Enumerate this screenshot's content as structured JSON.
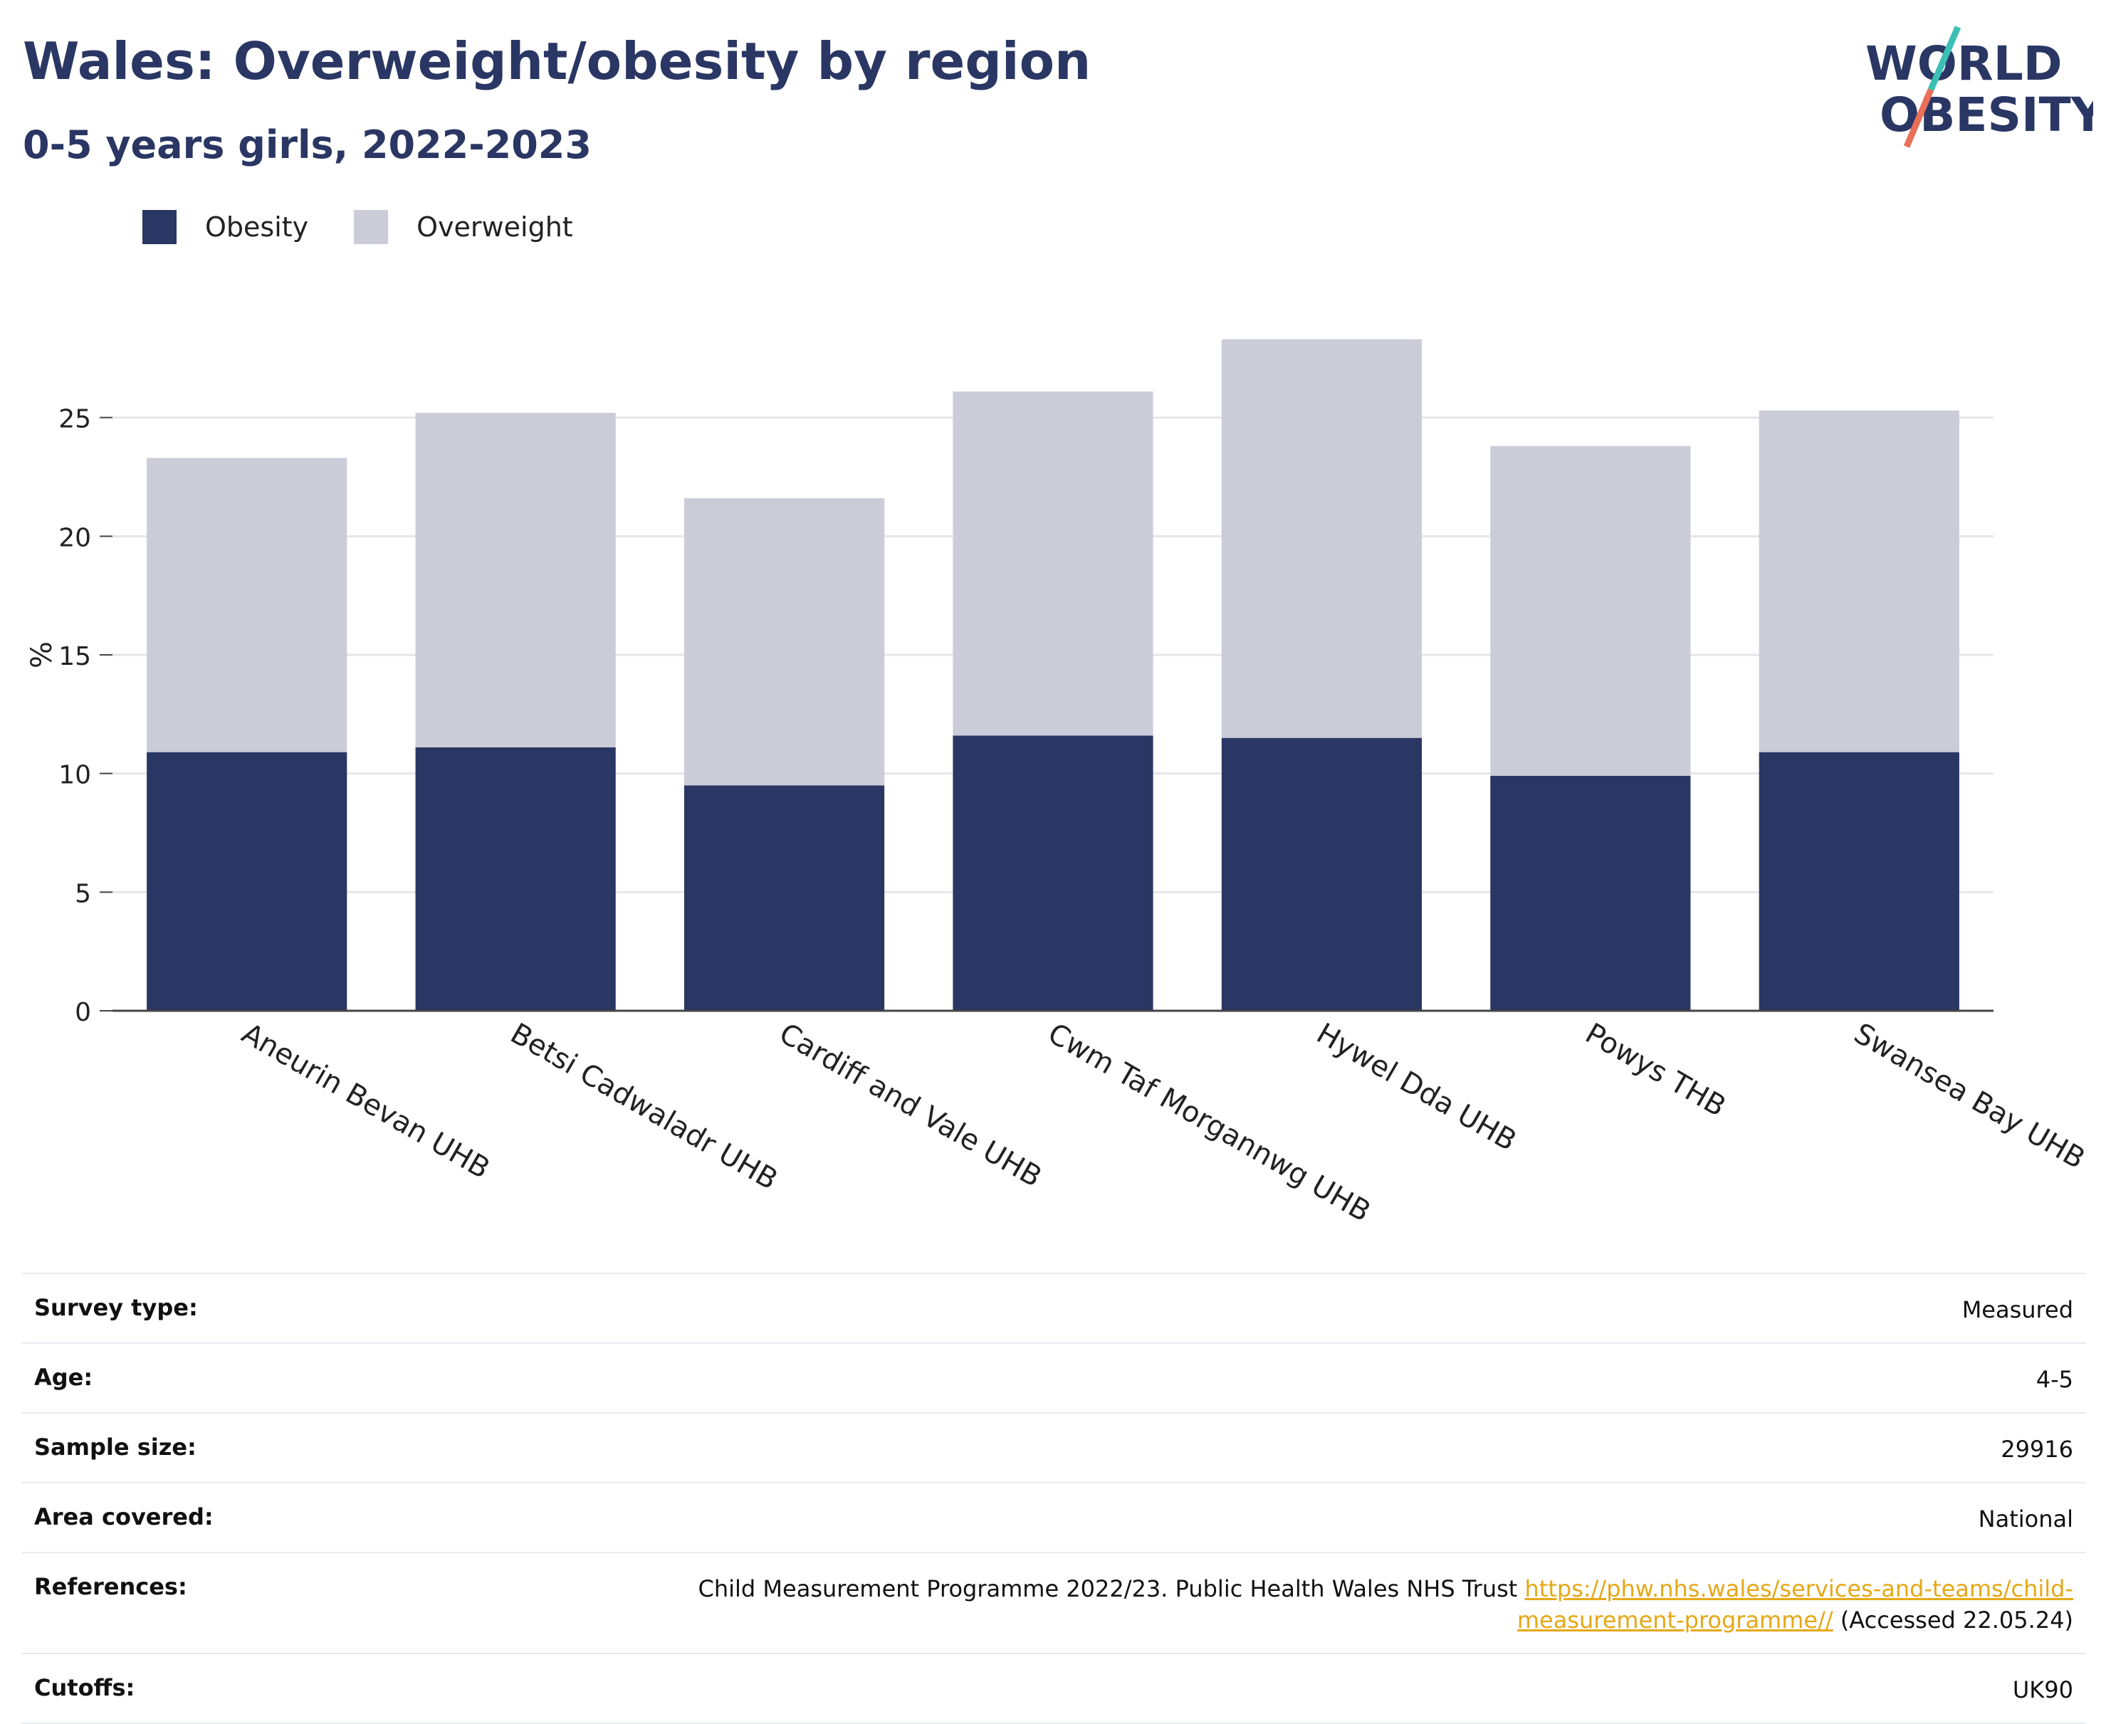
{
  "header": {
    "title": "Wales: Overweight/obesity by region",
    "subtitle": "0-5 years girls, 2022-2023"
  },
  "logo": {
    "line1": "WORLD",
    "line2": "OBESITY"
  },
  "colors": {
    "obesity": "#2a3663",
    "overweight": "#cbccd8",
    "accent_teal": "#3bbfb5",
    "accent_coral": "#e8705a",
    "link": "#e6a817"
  },
  "chart_data": {
    "type": "bar",
    "stacked": true,
    "categories": [
      "Aneurin Bevan UHB",
      "Betsi Cadwaladr UHB",
      "Cardiff and Vale UHB",
      "Cwm Taf Morgannwg UHB",
      "Hywel Dda UHB",
      "Powys THB",
      "Swansea Bay UHB"
    ],
    "series": [
      {
        "name": "Obesity",
        "color": "#2a3663",
        "values": [
          10.9,
          11.1,
          9.5,
          11.6,
          11.5,
          9.9,
          10.9
        ]
      },
      {
        "name": "Overweight",
        "color": "#cbccd8",
        "values": [
          12.4,
          14.1,
          12.1,
          14.5,
          16.8,
          13.9,
          14.4
        ]
      }
    ],
    "ylabel": "%",
    "xlabel": "",
    "ylim": [
      0,
      30
    ],
    "yticks": [
      0,
      5,
      10,
      15,
      20,
      25
    ],
    "grid": true,
    "legend": "top-left"
  },
  "info": {
    "rows": [
      {
        "label": "Survey type:",
        "value": "Measured"
      },
      {
        "label": "Age:",
        "value": "4-5"
      },
      {
        "label": "Sample size:",
        "value": "29916"
      },
      {
        "label": "Area covered:",
        "value": "National"
      },
      {
        "label": "Cutoffs:",
        "value": "UK90"
      }
    ],
    "references": {
      "label": "References:",
      "text": "Child Measurement Programme 2022/23. Public Health Wales NHS Trust ",
      "link": "https://phw.nhs.wales/services-and-teams/child-measurement-programme//",
      "suffix": " (Accessed 22.05.24)"
    }
  }
}
